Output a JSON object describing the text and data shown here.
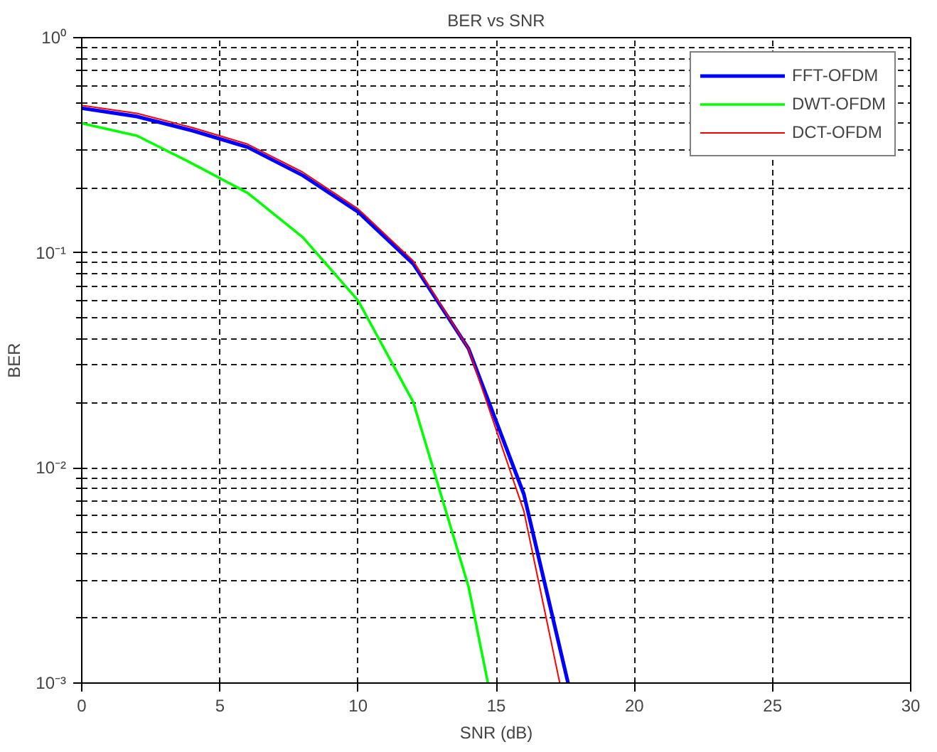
{
  "chart_data": {
    "type": "line",
    "title": "BER vs SNR",
    "xlabel": "SNR (dB)",
    "ylabel": "BER",
    "log": "y",
    "grid": true,
    "legend": "top right",
    "line_style": "solid",
    "marker": "none",
    "xlim": [
      0,
      30
    ],
    "xticks": [
      0,
      5,
      10,
      15,
      20,
      25,
      30
    ],
    "ylim": [
      0.001,
      1
    ],
    "yticks": [
      {
        "value": 0.001,
        "label": "10⁻³"
      },
      {
        "value": 0.01,
        "label": "10⁻²"
      },
      {
        "value": 0.1,
        "label": "10⁻¹"
      },
      {
        "value": 1,
        "label": "10⁰"
      }
    ],
    "series": [
      {
        "name": "FFT-OFDM",
        "color": "#0000ff",
        "x": [
          0,
          2,
          4,
          6,
          8,
          10,
          12,
          14,
          16,
          17.6
        ],
        "values": [
          0.47,
          0.43,
          0.37,
          0.31,
          0.229,
          0.155,
          0.0887,
          0.0358,
          0.00755,
          0.001
        ]
      },
      {
        "name": "DWT-OFDM",
        "color": "#00ff00",
        "x": [
          0,
          2,
          4,
          6,
          8,
          10,
          12,
          14,
          14.7
        ],
        "values": [
          0.4,
          0.35,
          0.26,
          0.19,
          0.118,
          0.06,
          0.0202,
          0.0028,
          0.001
        ]
      },
      {
        "name": "DCT-OFDM",
        "color": "#ff0000",
        "x": [
          0,
          2,
          4,
          6,
          8,
          10,
          12,
          14,
          16,
          17.3
        ],
        "values": [
          0.485,
          0.445,
          0.382,
          0.32,
          0.237,
          0.16,
          0.0915,
          0.0358,
          0.0063,
          0.001
        ]
      }
    ]
  }
}
